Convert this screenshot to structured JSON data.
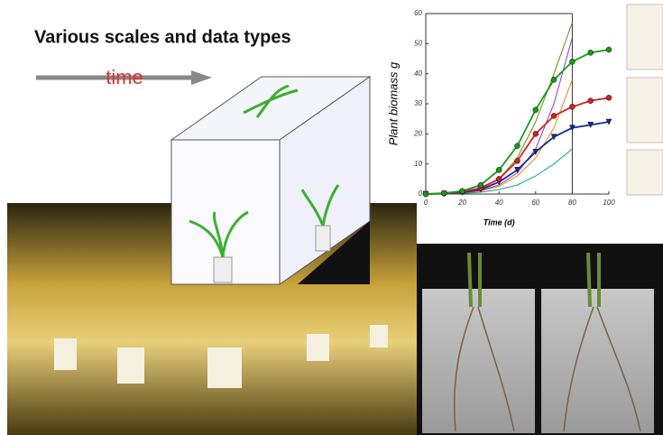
{
  "title": "Various scales and data types",
  "arrow_label": "time",
  "chart_data": {
    "type": "line",
    "y_label": "Plant biomass g",
    "x_label": "Time (d)",
    "x": [
      0,
      10,
      20,
      30,
      40,
      50,
      60,
      70,
      80,
      90,
      100
    ],
    "series": [
      {
        "color": "#1a9a1a",
        "marker": "circle",
        "values": [
          0,
          0.3,
          1,
          3,
          8,
          16,
          28,
          38,
          44,
          47,
          48
        ]
      },
      {
        "color": "#d62020",
        "marker": "circle",
        "values": [
          0,
          0.2,
          0.8,
          2,
          5,
          11,
          20,
          26,
          29,
          31,
          32
        ]
      },
      {
        "color": "#1a2aa0",
        "marker": "triangle",
        "values": [
          0,
          0.1,
          0.5,
          1.5,
          4,
          8,
          14,
          19,
          22,
          23,
          24
        ]
      },
      {
        "color": "#9b30c8",
        "values": [
          0,
          0.1,
          0.4,
          1.2,
          3,
          7,
          15,
          30,
          52,
          null,
          null
        ]
      },
      {
        "color": "#e08a10",
        "values": [
          0,
          0.1,
          0.3,
          1,
          2.5,
          6,
          12,
          22,
          38,
          null,
          null
        ]
      },
      {
        "color": "#10a0a0",
        "values": [
          0,
          0.05,
          0.2,
          0.6,
          1.5,
          3,
          6,
          10,
          15,
          null,
          null
        ]
      },
      {
        "color": "#6a8a10",
        "values": [
          0,
          0.1,
          0.5,
          1.8,
          5,
          12,
          24,
          40,
          57,
          null,
          null
        ]
      }
    ],
    "xlim": [
      0,
      100
    ],
    "xticks": [
      0,
      20,
      40,
      60,
      80,
      100
    ],
    "ylim": [
      0,
      60
    ],
    "yticks": [
      0,
      10,
      20,
      30,
      40,
      50,
      60
    ]
  }
}
